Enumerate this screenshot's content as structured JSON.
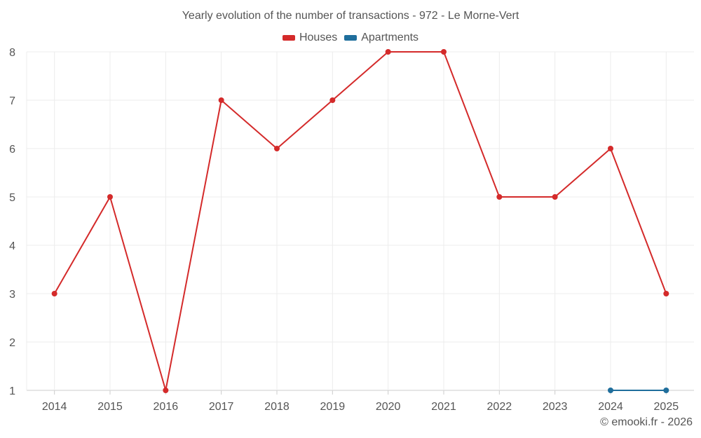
{
  "chart_data": {
    "type": "line",
    "title": "Yearly evolution of the number of transactions - 972 - Le Morne-Vert",
    "xlabel": "",
    "ylabel": "",
    "x": [
      "2014",
      "2015",
      "2016",
      "2017",
      "2018",
      "2019",
      "2020",
      "2021",
      "2022",
      "2023",
      "2024",
      "2025"
    ],
    "ylim": [
      1,
      8
    ],
    "yticks": [
      1,
      2,
      3,
      4,
      5,
      6,
      7,
      8
    ],
    "grid": true,
    "legend_position": "top-center",
    "series": [
      {
        "name": "Houses",
        "color": "#d42a2a",
        "values": [
          3,
          5,
          1,
          7,
          6,
          7,
          8,
          8,
          5,
          5,
          6,
          3
        ]
      },
      {
        "name": "Apartments",
        "color": "#1f6e9c",
        "values": [
          null,
          null,
          null,
          null,
          null,
          null,
          null,
          null,
          null,
          null,
          1,
          1
        ]
      }
    ]
  },
  "credit": "© emooki.fr - 2026"
}
